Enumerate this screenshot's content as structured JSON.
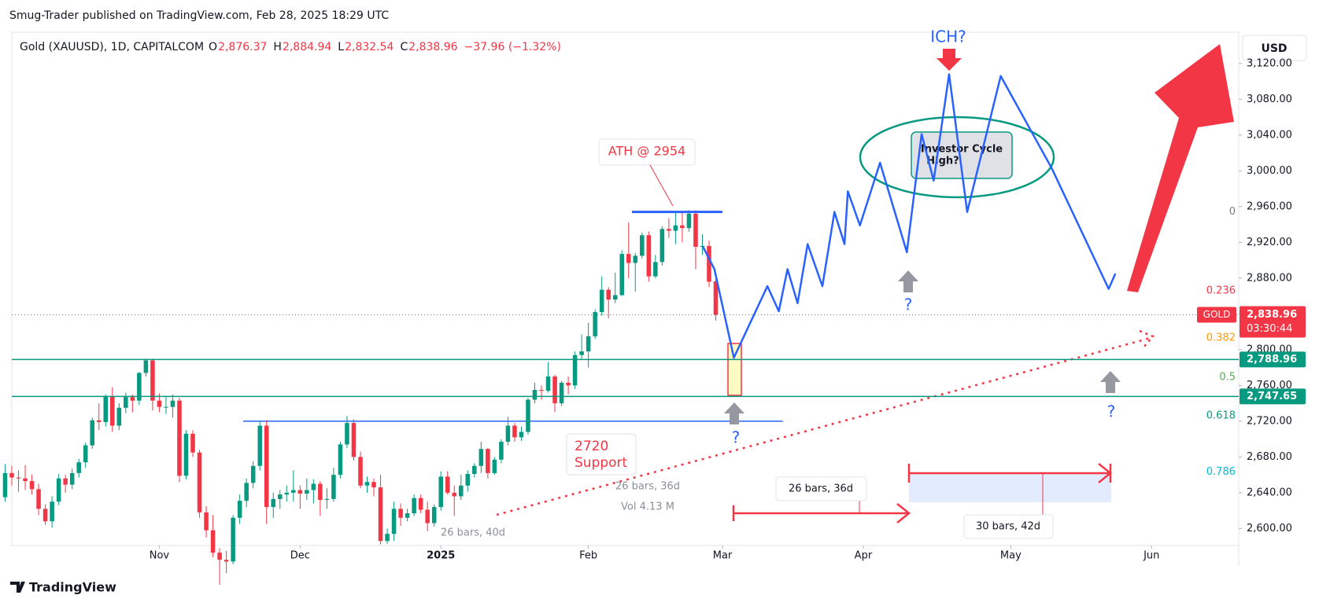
{
  "header": {
    "publisher": "Smug-Trader published on TradingView.com, Feb 28, 2025 18:29 UTC"
  },
  "footer": {
    "brand": "TradingView"
  },
  "chart_data": {
    "type": "candlestick",
    "title": "Gold (XAUUSD), 1D, CAPITALCOM",
    "ohlc_legend": [
      {
        "key": "O",
        "value": 2876.37,
        "label": "2,876.37"
      },
      {
        "key": "H",
        "value": 2884.94,
        "label": "2,884.94"
      },
      {
        "key": "L",
        "value": 2832.54,
        "label": "2,832.54"
      },
      {
        "key": "C",
        "value": 2838.96,
        "label": "2,838.96"
      }
    ],
    "change_label": "−37.96 (−1.32%)",
    "currency": "USD",
    "up_color": "#089981",
    "down_color": "#f23645",
    "candles": [
      [
        2635,
        2672,
        2630,
        2662
      ],
      [
        2662,
        2670,
        2648,
        2657
      ],
      [
        2657,
        2665,
        2641,
        2656
      ],
      [
        2656,
        2671,
        2643,
        2653
      ],
      [
        2653,
        2660,
        2638,
        2644
      ],
      [
        2644,
        2650,
        2615,
        2622
      ],
      [
        2622,
        2627,
        2604,
        2608
      ],
      [
        2608,
        2636,
        2601,
        2630
      ],
      [
        2630,
        2661,
        2626,
        2656
      ],
      [
        2656,
        2660,
        2640,
        2649
      ],
      [
        2649,
        2667,
        2644,
        2662
      ],
      [
        2662,
        2678,
        2657,
        2674
      ],
      [
        2674,
        2696,
        2668,
        2693
      ],
      [
        2693,
        2724,
        2689,
        2721
      ],
      [
        2721,
        2740,
        2710,
        2719
      ],
      [
        2719,
        2750,
        2714,
        2748
      ],
      [
        2748,
        2758,
        2708,
        2715
      ],
      [
        2715,
        2740,
        2710,
        2735
      ],
      [
        2735,
        2752,
        2729,
        2747
      ],
      [
        2747,
        2750,
        2730,
        2743
      ],
      [
        2743,
        2775,
        2738,
        2774
      ],
      [
        2774,
        2790,
        2770,
        2788
      ],
      [
        2788,
        2790,
        2732,
        2743
      ],
      [
        2743,
        2751,
        2730,
        2736
      ],
      [
        2736,
        2748,
        2728,
        2736
      ],
      [
        2736,
        2750,
        2724,
        2743
      ],
      [
        2743,
        2746,
        2652,
        2659
      ],
      [
        2659,
        2710,
        2655,
        2706
      ],
      [
        2706,
        2710,
        2680,
        2685
      ],
      [
        2685,
        2688,
        2612,
        2618
      ],
      [
        2618,
        2625,
        2590,
        2598
      ],
      [
        2598,
        2615,
        2568,
        2573
      ],
      [
        2573,
        2578,
        2537,
        2565
      ],
      [
        2565,
        2575,
        2550,
        2563
      ],
      [
        2563,
        2615,
        2560,
        2612
      ],
      [
        2612,
        2638,
        2605,
        2631
      ],
      [
        2631,
        2656,
        2624,
        2651
      ],
      [
        2651,
        2675,
        2645,
        2670
      ],
      [
        2670,
        2721,
        2665,
        2715
      ],
      [
        2715,
        2721,
        2605,
        2624
      ],
      [
        2624,
        2640,
        2612,
        2633
      ],
      [
        2633,
        2643,
        2622,
        2638
      ],
      [
        2638,
        2648,
        2630,
        2640
      ],
      [
        2640,
        2665,
        2630,
        2643
      ],
      [
        2643,
        2648,
        2622,
        2639
      ],
      [
        2639,
        2656,
        2632,
        2643
      ],
      [
        2643,
        2655,
        2628,
        2650
      ],
      [
        2650,
        2653,
        2614,
        2632
      ],
      [
        2632,
        2645,
        2622,
        2633
      ],
      [
        2633,
        2668,
        2630,
        2660
      ],
      [
        2660,
        2697,
        2656,
        2694
      ],
      [
        2694,
        2726,
        2690,
        2718
      ],
      [
        2718,
        2722,
        2676,
        2680
      ],
      [
        2680,
        2686,
        2645,
        2648
      ],
      [
        2648,
        2658,
        2640,
        2652
      ],
      [
        2652,
        2656,
        2636,
        2646
      ],
      [
        2646,
        2660,
        2582,
        2586
      ],
      [
        2586,
        2600,
        2583,
        2594
      ],
      [
        2594,
        2630,
        2586,
        2622
      ],
      [
        2622,
        2628,
        2603,
        2612
      ],
      [
        2612,
        2622,
        2608,
        2617
      ],
      [
        2617,
        2638,
        2614,
        2634
      ],
      [
        2634,
        2638,
        2617,
        2621
      ],
      [
        2621,
        2630,
        2597,
        2606
      ],
      [
        2606,
        2627,
        2602,
        2624
      ],
      [
        2624,
        2664,
        2620,
        2658
      ],
      [
        2658,
        2664,
        2638,
        2640
      ],
      [
        2640,
        2648,
        2614,
        2636
      ],
      [
        2636,
        2660,
        2632,
        2648
      ],
      [
        2648,
        2665,
        2641,
        2661
      ],
      [
        2661,
        2673,
        2657,
        2670
      ],
      [
        2670,
        2697,
        2662,
        2689
      ],
      [
        2689,
        2690,
        2656,
        2662
      ],
      [
        2662,
        2680,
        2660,
        2677
      ],
      [
        2677,
        2700,
        2673,
        2697
      ],
      [
        2697,
        2725,
        2693,
        2715
      ],
      [
        2715,
        2718,
        2697,
        2702
      ],
      [
        2702,
        2714,
        2698,
        2708
      ],
      [
        2708,
        2746,
        2705,
        2744
      ],
      [
        2744,
        2763,
        2740,
        2755
      ],
      [
        2755,
        2760,
        2744,
        2754
      ],
      [
        2754,
        2786,
        2752,
        2770
      ],
      [
        2770,
        2772,
        2730,
        2740
      ],
      [
        2740,
        2765,
        2737,
        2763
      ],
      [
        2763,
        2770,
        2750,
        2760
      ],
      [
        2760,
        2798,
        2756,
        2794
      ],
      [
        2794,
        2817,
        2790,
        2798
      ],
      [
        2798,
        2830,
        2780,
        2815
      ],
      [
        2815,
        2845,
        2812,
        2842
      ],
      [
        2842,
        2882,
        2838,
        2867
      ],
      [
        2867,
        2870,
        2835,
        2856
      ],
      [
        2856,
        2886,
        2852,
        2861
      ],
      [
        2861,
        2911,
        2860,
        2907
      ],
      [
        2907,
        2942,
        2880,
        2897
      ],
      [
        2897,
        2908,
        2865,
        2905
      ],
      [
        2905,
        2931,
        2902,
        2928
      ],
      [
        2928,
        2932,
        2876,
        2882
      ],
      [
        2882,
        2906,
        2880,
        2898
      ],
      [
        2898,
        2938,
        2894,
        2935
      ],
      [
        2935,
        2947,
        2925,
        2933
      ],
      [
        2933,
        2954,
        2918,
        2939
      ],
      [
        2939,
        2955,
        2920,
        2936
      ],
      [
        2936,
        2956,
        2932,
        2952
      ],
      [
        2952,
        2956,
        2890,
        2915
      ],
      [
        2915,
        2929,
        2906,
        2916
      ],
      [
        2916,
        2922,
        2870,
        2876
      ],
      [
        2876.37,
        2884.94,
        2832.54,
        2838.96
      ]
    ],
    "xlim": [
      1,
      184
    ],
    "xticks": [
      {
        "value": 23,
        "label": "Nov"
      },
      {
        "value": 44,
        "label": "Dec"
      },
      {
        "value": 65,
        "label": "2025"
      },
      {
        "value": 87,
        "label": "Feb"
      },
      {
        "value": 107,
        "label": "Mar"
      },
      {
        "value": 128,
        "label": "Apr"
      },
      {
        "value": 150,
        "label": "May"
      },
      {
        "value": 171,
        "label": "Jun"
      }
    ],
    "ylim": [
      2581,
      3155
    ],
    "yticks": [
      {
        "value": 2600,
        "label": "2,600.00"
      },
      {
        "value": 2640,
        "label": "2,640.00"
      },
      {
        "value": 2680,
        "label": "2,680.00"
      },
      {
        "value": 2720,
        "label": "2,720.00"
      },
      {
        "value": 2760,
        "label": "2,760.00"
      },
      {
        "value": 2800,
        "label": "2,800.00"
      },
      {
        "value": 2840,
        "label": "2,840.00"
      },
      {
        "value": 2880,
        "label": "2,880.00"
      },
      {
        "value": 2920,
        "label": "2,920.00"
      },
      {
        "value": 2960,
        "label": "2,960.00"
      },
      {
        "value": 3000,
        "label": "3,000.00"
      },
      {
        "value": 3040,
        "label": "3,040.00"
      },
      {
        "value": 3080,
        "label": "3,080.00"
      },
      {
        "value": 3120,
        "label": "3,120.00"
      }
    ],
    "grid": false,
    "last_price": {
      "value": 2838.96,
      "label": "2,838.96",
      "symbol": "GOLD",
      "countdown": "03:30:44",
      "color": "#f23645"
    },
    "levels": [
      {
        "value": 2788.96,
        "label": "2,788.96",
        "color": "#089981"
      },
      {
        "value": 2747.65,
        "label": "2,747.65",
        "color": "#089981"
      }
    ],
    "support": {
      "value": 2720,
      "from": 35.5,
      "to": 116,
      "color": "#2962ff"
    },
    "ath": {
      "value": 2954,
      "from": 93.5,
      "to": 107,
      "label": "ATH @ 2954",
      "color": "#2962ff"
    },
    "fib": [
      {
        "ratio": 0,
        "price": 2954,
        "color": "#787b86"
      },
      {
        "ratio": 0.236,
        "price": 2866,
        "color": "#f23645"
      },
      {
        "ratio": 0.382,
        "price": 2813,
        "color": "#ff9800"
      },
      {
        "ratio": 0.5,
        "price": 2769,
        "color": "#4caf50"
      },
      {
        "ratio": 0.618,
        "price": 2726,
        "color": "#089981"
      },
      {
        "ratio": 0.786,
        "price": 2663,
        "color": "#00bcd4"
      }
    ],
    "projection": {
      "color": "#2962ff",
      "x": [
        104.1,
        105.8,
        108.7,
        113.7,
        115.4,
        116.7,
        118.2,
        119.7,
        121.9,
        123.7,
        125.2,
        125.7,
        127.5,
        130.5,
        134.5,
        136.7,
        138.5,
        140.8,
        143.5,
        148.5,
        156.1,
        164.6,
        165.6
      ],
      "values": [
        2915,
        2890,
        2791,
        2871,
        2843,
        2890,
        2852,
        2918,
        2871,
        2954,
        2918,
        2977,
        2939,
        3009,
        2909,
        3041,
        2989,
        3108,
        2954,
        3106,
        3003,
        2868,
        2885
      ]
    },
    "annotations": {
      "ich": "ICH?",
      "investor_cycle": [
        "Investor Cycle",
        "High?"
      ],
      "question": "?",
      "support_note": [
        "2720",
        "Support"
      ],
      "measure_1": "26 bars, 36d",
      "measure_2": "30 bars, 42d",
      "faded": [
        "26 bars, 36d",
        "Vol 4.13 M",
        "26 bars, 40d"
      ]
    }
  }
}
